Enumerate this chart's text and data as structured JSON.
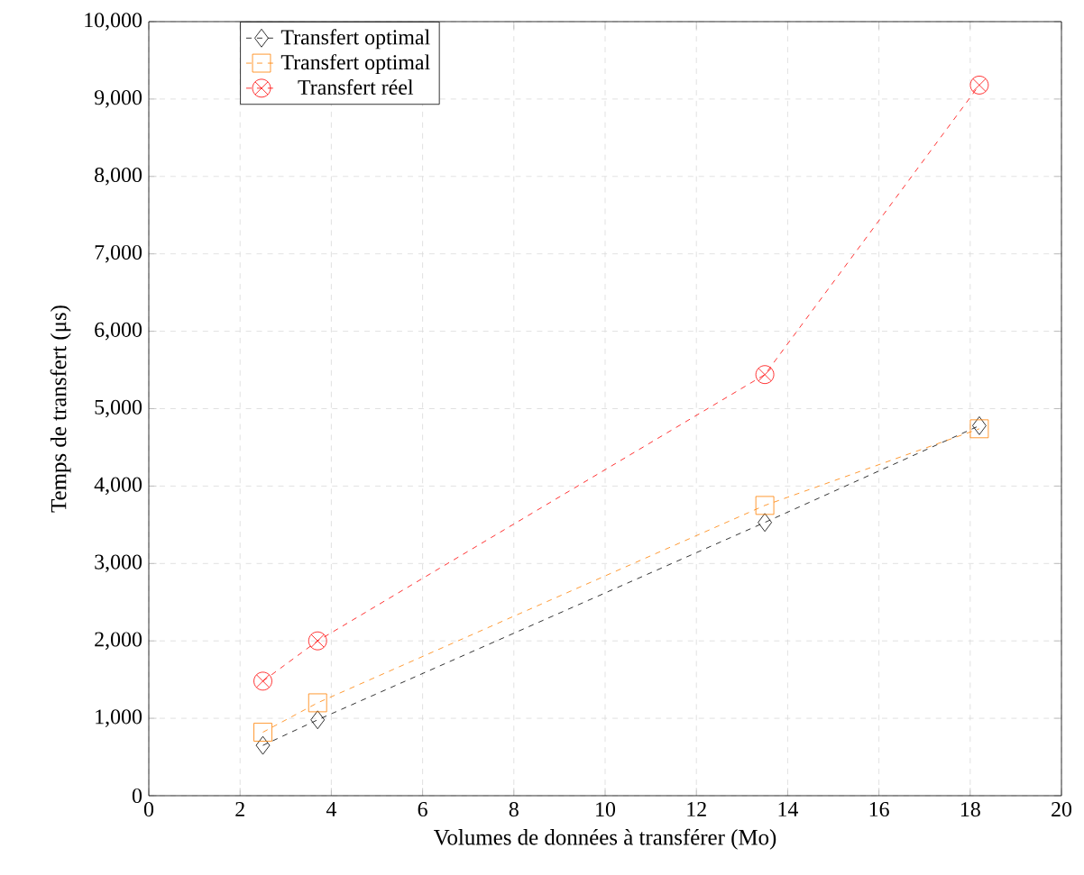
{
  "chart_data": {
    "type": "line",
    "xlabel": "Volumes de données à transférer (Mo)",
    "ylabel": "Temps de transfert (μs)",
    "xlim": [
      0,
      20
    ],
    "xticks": [
      0,
      2,
      4,
      6,
      8,
      10,
      12,
      14,
      16,
      18,
      20
    ],
    "ylim": [
      0,
      10000
    ],
    "yticks": [
      0,
      {
        "value": 1000,
        "label": "1,000"
      },
      {
        "value": 2000,
        "label": "2,000"
      },
      {
        "value": 3000,
        "label": "3,000"
      },
      {
        "value": 4000,
        "label": "4,000"
      },
      {
        "value": 5000,
        "label": "5,000"
      },
      {
        "value": 6000,
        "label": "6,000"
      },
      {
        "value": 7000,
        "label": "7,000"
      },
      {
        "value": 8000,
        "label": "8,000"
      },
      {
        "value": 9000,
        "label": "9,000"
      },
      {
        "value": 10000,
        "label": "10,000"
      }
    ],
    "x": [
      2.5,
      3.7,
      13.5,
      18.2
    ],
    "series": [
      {
        "name": "Transfert optimal",
        "color": "#000000",
        "marker": "diamond",
        "values": [
          650,
          980,
          3530,
          4780
        ]
      },
      {
        "name": "Transfert optimal",
        "color": "#ff8000",
        "marker": "square",
        "values": [
          820,
          1200,
          3750,
          4740
        ]
      },
      {
        "name": "Transfert réel",
        "color": "#ff0000",
        "marker": "cross",
        "values": [
          1480,
          2000,
          5440,
          9180
        ]
      }
    ],
    "grid": true,
    "legend": "top left",
    "line_style": "dashed"
  }
}
